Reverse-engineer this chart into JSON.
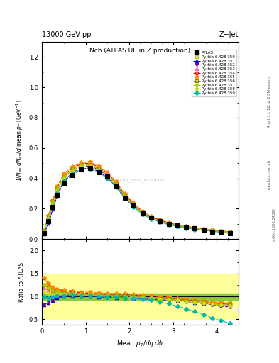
{
  "title_top": "13000 GeV pp",
  "title_right": "Z+Jet",
  "plot_title": "Nch (ATLAS UE in Z production)",
  "xlabel": "Mean $p_T/d\\eta\\,d\\phi$",
  "ylabel_main": "$1/N_{ev}$ $dN_{ev}/d$ mean $p_T$ [GeV$^{-1}$]",
  "ylabel_ratio": "Ratio to ATLAS",
  "watermark": "ATLAS_2019_I1736531",
  "rivet_text": "Rivet 3.1.10, ≥ 2.8M events",
  "arxiv_text": "[arXiv:1306.3436]",
  "mcplots_text": "mcplots.cern.ch",
  "xlim": [
    0,
    4.5
  ],
  "ylim_main": [
    0,
    1.3
  ],
  "ylim_ratio": [
    0.38,
    2.25
  ],
  "yticks_main": [
    0.0,
    0.2,
    0.4,
    0.6,
    0.8,
    1.0,
    1.2
  ],
  "yticks_ratio": [
    0.5,
    1.0,
    1.5,
    2.0
  ],
  "xticks": [
    0,
    1,
    2,
    3,
    4
  ],
  "series": [
    {
      "label": "ATLAS",
      "color": "#000000",
      "marker": "s",
      "marker_size": 4,
      "line_style": "none",
      "filled": true,
      "x": [
        0.05,
        0.15,
        0.25,
        0.35,
        0.5,
        0.7,
        0.9,
        1.1,
        1.3,
        1.5,
        1.7,
        1.9,
        2.1,
        2.3,
        2.5,
        2.7,
        2.9,
        3.1,
        3.3,
        3.5,
        3.7,
        3.9,
        4.1,
        4.3
      ],
      "y": [
        0.04,
        0.12,
        0.21,
        0.29,
        0.37,
        0.42,
        0.46,
        0.47,
        0.44,
        0.41,
        0.35,
        0.27,
        0.22,
        0.17,
        0.14,
        0.12,
        0.1,
        0.09,
        0.08,
        0.07,
        0.06,
        0.05,
        0.05,
        0.04
      ],
      "ratio": []
    },
    {
      "label": "Pythia 6.428 350",
      "color": "#bbbb00",
      "marker": "s",
      "marker_size": 3,
      "line_style": "--",
      "filled": false,
      "x": [
        0.05,
        0.15,
        0.25,
        0.35,
        0.5,
        0.7,
        0.9,
        1.1,
        1.3,
        1.5,
        1.7,
        1.9,
        2.1,
        2.3,
        2.5,
        2.7,
        2.9,
        3.1,
        3.3,
        3.5,
        3.7,
        3.9,
        4.1,
        4.3
      ],
      "y": [
        0.055,
        0.15,
        0.255,
        0.345,
        0.43,
        0.475,
        0.5,
        0.5,
        0.47,
        0.43,
        0.37,
        0.29,
        0.23,
        0.18,
        0.145,
        0.125,
        0.105,
        0.093,
        0.082,
        0.073,
        0.066,
        0.058,
        0.052,
        0.047
      ],
      "ratio": [
        1.25,
        1.18,
        1.14,
        1.12,
        1.1,
        1.07,
        1.06,
        1.04,
        1.03,
        1.02,
        1.02,
        1.02,
        1.01,
        0.99,
        0.97,
        0.96,
        0.95,
        0.94,
        0.93,
        0.92,
        0.91,
        0.9,
        0.88,
        0.87
      ]
    },
    {
      "label": "Pythia 6.428 351",
      "color": "#0000cc",
      "marker": "^",
      "marker_size": 3,
      "line_style": "--",
      "filled": true,
      "x": [
        0.05,
        0.15,
        0.25,
        0.35,
        0.5,
        0.7,
        0.9,
        1.1,
        1.3,
        1.5,
        1.7,
        1.9,
        2.1,
        2.3,
        2.5,
        2.7,
        2.9,
        3.1,
        3.3,
        3.5,
        3.7,
        3.9,
        4.1,
        4.3
      ],
      "y": [
        0.033,
        0.105,
        0.195,
        0.285,
        0.375,
        0.425,
        0.46,
        0.47,
        0.445,
        0.405,
        0.345,
        0.27,
        0.215,
        0.165,
        0.135,
        0.115,
        0.097,
        0.086,
        0.076,
        0.067,
        0.06,
        0.053,
        0.047,
        0.042
      ],
      "ratio": [
        0.82,
        0.87,
        0.91,
        0.97,
        1.0,
        1.0,
        1.0,
        1.0,
        0.99,
        0.98,
        0.97,
        0.97,
        0.96,
        0.95,
        0.94,
        0.93,
        0.92,
        0.91,
        0.89,
        0.87,
        0.85,
        0.83,
        0.81,
        0.79
      ]
    },
    {
      "label": "Pythia 6.428 352",
      "color": "#7700bb",
      "marker": "v",
      "marker_size": 3,
      "line_style": "--",
      "filled": true,
      "x": [
        0.05,
        0.15,
        0.25,
        0.35,
        0.5,
        0.7,
        0.9,
        1.1,
        1.3,
        1.5,
        1.7,
        1.9,
        2.1,
        2.3,
        2.5,
        2.7,
        2.9,
        3.1,
        3.3,
        3.5,
        3.7,
        3.9,
        4.1,
        4.3
      ],
      "y": [
        0.033,
        0.107,
        0.2,
        0.29,
        0.383,
        0.437,
        0.472,
        0.483,
        0.457,
        0.417,
        0.356,
        0.278,
        0.222,
        0.17,
        0.138,
        0.118,
        0.099,
        0.088,
        0.078,
        0.069,
        0.062,
        0.055,
        0.049,
        0.044
      ],
      "ratio": [
        0.82,
        0.88,
        0.93,
        0.98,
        1.02,
        1.04,
        1.04,
        1.05,
        1.04,
        1.03,
        1.02,
        1.01,
        1.0,
        0.99,
        0.97,
        0.95,
        0.93,
        0.91,
        0.89,
        0.87,
        0.84,
        0.82,
        0.79,
        0.77
      ]
    },
    {
      "label": "Pythia 6.428 353",
      "color": "#ff55aa",
      "marker": "^",
      "marker_size": 3,
      "line_style": "--",
      "filled": false,
      "x": [
        0.05,
        0.15,
        0.25,
        0.35,
        0.5,
        0.7,
        0.9,
        1.1,
        1.3,
        1.5,
        1.7,
        1.9,
        2.1,
        2.3,
        2.5,
        2.7,
        2.9,
        3.1,
        3.3,
        3.5,
        3.7,
        3.9,
        4.1,
        4.3
      ],
      "y": [
        0.05,
        0.14,
        0.235,
        0.325,
        0.405,
        0.455,
        0.483,
        0.49,
        0.462,
        0.423,
        0.362,
        0.282,
        0.224,
        0.172,
        0.14,
        0.12,
        0.101,
        0.09,
        0.08,
        0.071,
        0.064,
        0.057,
        0.051,
        0.046
      ],
      "ratio": [
        1.18,
        1.14,
        1.1,
        1.09,
        1.08,
        1.07,
        1.06,
        1.05,
        1.04,
        1.03,
        1.02,
        1.01,
        1.0,
        0.99,
        0.97,
        0.96,
        0.95,
        0.93,
        0.91,
        0.89,
        0.87,
        0.85,
        0.83,
        0.81
      ]
    },
    {
      "label": "Pythia 6.428 354",
      "color": "#dd0000",
      "marker": "o",
      "marker_size": 3,
      "line_style": "--",
      "filled": false,
      "x": [
        0.05,
        0.15,
        0.25,
        0.35,
        0.5,
        0.7,
        0.9,
        1.1,
        1.3,
        1.5,
        1.7,
        1.9,
        2.1,
        2.3,
        2.5,
        2.7,
        2.9,
        3.1,
        3.3,
        3.5,
        3.7,
        3.9,
        4.1,
        4.3
      ],
      "y": [
        0.058,
        0.153,
        0.253,
        0.343,
        0.422,
        0.467,
        0.495,
        0.5,
        0.473,
        0.434,
        0.373,
        0.293,
        0.234,
        0.181,
        0.147,
        0.126,
        0.106,
        0.094,
        0.083,
        0.074,
        0.067,
        0.059,
        0.053,
        0.048
      ],
      "ratio": [
        1.4,
        1.28,
        1.2,
        1.15,
        1.12,
        1.1,
        1.08,
        1.07,
        1.06,
        1.05,
        1.05,
        1.04,
        1.03,
        1.02,
        1.01,
        0.99,
        0.97,
        0.95,
        0.93,
        0.91,
        0.89,
        0.87,
        0.85,
        0.83
      ]
    },
    {
      "label": "Pythia 6.428 355",
      "color": "#ff8800",
      "marker": "*",
      "marker_size": 4,
      "line_style": "--",
      "filled": true,
      "x": [
        0.05,
        0.15,
        0.25,
        0.35,
        0.5,
        0.7,
        0.9,
        1.1,
        1.3,
        1.5,
        1.7,
        1.9,
        2.1,
        2.3,
        2.5,
        2.7,
        2.9,
        3.1,
        3.3,
        3.5,
        3.7,
        3.9,
        4.1,
        4.3
      ],
      "y": [
        0.058,
        0.153,
        0.255,
        0.348,
        0.43,
        0.478,
        0.505,
        0.508,
        0.48,
        0.44,
        0.379,
        0.299,
        0.238,
        0.184,
        0.15,
        0.128,
        0.108,
        0.096,
        0.085,
        0.076,
        0.068,
        0.061,
        0.054,
        0.049
      ],
      "ratio": [
        1.4,
        1.28,
        1.2,
        1.16,
        1.14,
        1.12,
        1.1,
        1.09,
        1.08,
        1.07,
        1.07,
        1.06,
        1.05,
        1.04,
        1.02,
        1.0,
        0.98,
        0.96,
        0.94,
        0.92,
        0.9,
        0.88,
        0.86,
        0.84
      ]
    },
    {
      "label": "Pythia 6.428 356",
      "color": "#888800",
      "marker": "s",
      "marker_size": 3,
      "line_style": "--",
      "filled": false,
      "x": [
        0.05,
        0.15,
        0.25,
        0.35,
        0.5,
        0.7,
        0.9,
        1.1,
        1.3,
        1.5,
        1.7,
        1.9,
        2.1,
        2.3,
        2.5,
        2.7,
        2.9,
        3.1,
        3.3,
        3.5,
        3.7,
        3.9,
        4.1,
        4.3
      ],
      "y": [
        0.052,
        0.143,
        0.238,
        0.328,
        0.408,
        0.457,
        0.485,
        0.488,
        0.461,
        0.422,
        0.362,
        0.283,
        0.225,
        0.173,
        0.14,
        0.12,
        0.101,
        0.09,
        0.08,
        0.071,
        0.064,
        0.057,
        0.051,
        0.046
      ],
      "ratio": [
        1.25,
        1.18,
        1.12,
        1.1,
        1.08,
        1.06,
        1.05,
        1.04,
        1.03,
        1.02,
        1.02,
        1.01,
        1.0,
        0.99,
        0.97,
        0.96,
        0.95,
        0.93,
        0.91,
        0.89,
        0.87,
        0.85,
        0.83,
        0.81
      ]
    },
    {
      "label": "Pythia 6.428 357",
      "color": "#aacc00",
      "marker": "P",
      "marker_size": 3,
      "line_style": "--",
      "filled": true,
      "x": [
        0.05,
        0.15,
        0.25,
        0.35,
        0.5,
        0.7,
        0.9,
        1.1,
        1.3,
        1.5,
        1.7,
        1.9,
        2.1,
        2.3,
        2.5,
        2.7,
        2.9,
        3.1,
        3.3,
        3.5,
        3.7,
        3.9,
        4.1,
        4.3
      ],
      "y": [
        0.052,
        0.143,
        0.238,
        0.328,
        0.408,
        0.457,
        0.485,
        0.488,
        0.461,
        0.422,
        0.362,
        0.283,
        0.225,
        0.173,
        0.14,
        0.12,
        0.101,
        0.09,
        0.08,
        0.071,
        0.064,
        0.057,
        0.051,
        0.046
      ],
      "ratio": [
        1.25,
        1.18,
        1.12,
        1.09,
        1.07,
        1.06,
        1.05,
        1.04,
        1.03,
        1.02,
        1.01,
        1.0,
        0.99,
        0.98,
        0.97,
        0.95,
        0.93,
        0.91,
        0.89,
        0.87,
        0.85,
        0.83,
        0.81,
        0.79
      ]
    },
    {
      "label": "Pythia 6.428 358",
      "color": "#ccdd00",
      "marker": "p",
      "marker_size": 3,
      "line_style": "--",
      "filled": true,
      "x": [
        0.05,
        0.15,
        0.25,
        0.35,
        0.5,
        0.7,
        0.9,
        1.1,
        1.3,
        1.5,
        1.7,
        1.9,
        2.1,
        2.3,
        2.5,
        2.7,
        2.9,
        3.1,
        3.3,
        3.5,
        3.7,
        3.9,
        4.1,
        4.3
      ],
      "y": [
        0.047,
        0.133,
        0.227,
        0.316,
        0.396,
        0.445,
        0.473,
        0.476,
        0.449,
        0.411,
        0.352,
        0.275,
        0.219,
        0.168,
        0.137,
        0.117,
        0.099,
        0.088,
        0.078,
        0.069,
        0.062,
        0.055,
        0.049,
        0.044
      ],
      "ratio": [
        1.1,
        1.07,
        1.05,
        1.05,
        1.05,
        1.04,
        1.03,
        1.02,
        1.01,
        1.0,
        0.99,
        0.98,
        0.97,
        0.96,
        0.95,
        0.94,
        0.93,
        0.92,
        0.9,
        0.88,
        0.86,
        0.84,
        0.82,
        0.8
      ]
    },
    {
      "label": "Pythia 6.428 359",
      "color": "#00bbaa",
      "marker": "D",
      "marker_size": 3,
      "line_style": "--",
      "filled": true,
      "x": [
        0.05,
        0.15,
        0.25,
        0.35,
        0.5,
        0.7,
        0.9,
        1.1,
        1.3,
        1.5,
        1.7,
        1.9,
        2.1,
        2.3,
        2.5,
        2.7,
        2.9,
        3.1,
        3.3,
        3.5,
        3.7,
        3.9,
        4.1,
        4.3
      ],
      "y": [
        0.04,
        0.12,
        0.213,
        0.302,
        0.382,
        0.432,
        0.46,
        0.464,
        0.438,
        0.4,
        0.342,
        0.268,
        0.213,
        0.163,
        0.132,
        0.112,
        0.094,
        0.083,
        0.073,
        0.064,
        0.057,
        0.05,
        0.044,
        0.039
      ],
      "ratio": [
        0.98,
        0.97,
        0.98,
        1.01,
        1.02,
        1.03,
        1.02,
        1.01,
        1.0,
        0.99,
        0.98,
        0.97,
        0.96,
        0.94,
        0.92,
        0.88,
        0.84,
        0.79,
        0.73,
        0.67,
        0.6,
        0.53,
        0.47,
        0.42
      ]
    }
  ],
  "green_band_ratio": [
    0.93,
    1.07
  ],
  "yellow_band_ratio": [
    0.5,
    1.5
  ],
  "background_color": "#ffffff"
}
